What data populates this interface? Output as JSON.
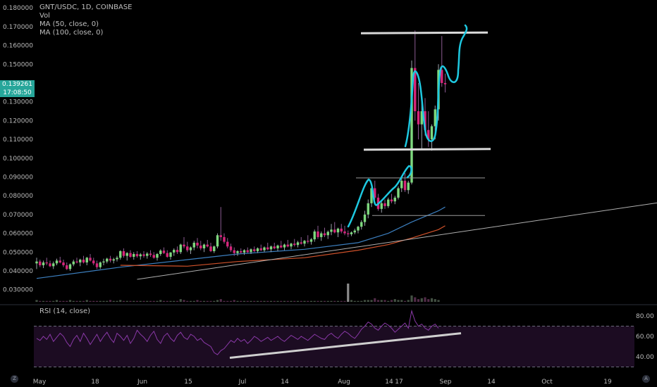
{
  "header": {
    "symbol": "GNT/USDC, 1D, COINBASE",
    "indicators": [
      "Vol",
      "MA (50, close, 0)",
      "MA (100, close, 0)"
    ]
  },
  "price_panel": {
    "last_price": "0.139261",
    "countdown": "17:08:50",
    "y_ticks": [
      "0.180000",
      "0.170000",
      "0.160000",
      "0.150000",
      "0.140000",
      "0.130000",
      "0.120000",
      "0.110000",
      "0.100000",
      "0.090000",
      "0.080000",
      "0.070000",
      "0.060000",
      "0.050000",
      "0.040000",
      "0.030000"
    ]
  },
  "rsi_panel": {
    "label": "RSI (14, close)",
    "y_ticks": [
      "80.00",
      "60.00",
      "40.00"
    ]
  },
  "time_axis": [
    "May",
    "18",
    "Jun",
    "15",
    "Jul",
    "14",
    "Aug",
    "14",
    "17",
    "Sep",
    "14",
    "Oct",
    "19"
  ],
  "corner_buttons": [
    "Z",
    "A"
  ],
  "colors": {
    "up": "#7ed87e",
    "down": "#d6257a",
    "ma50": "#3c7fbf",
    "ma100": "#d2522a",
    "rsi": "#8a39a8",
    "rsi_fill": "#1c0c22",
    "annotation": "#1ec8e0",
    "trendline": "#d9d9d9"
  },
  "chart_data": {
    "type": "candlestick",
    "x_range": [
      "Apr 29",
      "Oct 20"
    ],
    "y_range": [
      0.025,
      0.183
    ],
    "y_scale": "linear",
    "candles": [
      [
        0.044,
        0.047,
        0.041,
        0.045
      ],
      [
        0.045,
        0.046,
        0.042,
        0.043
      ],
      [
        0.043,
        0.0455,
        0.0415,
        0.0445
      ],
      [
        0.0445,
        0.047,
        0.043,
        0.044
      ],
      [
        0.044,
        0.0455,
        0.042,
        0.0425
      ],
      [
        0.0425,
        0.045,
        0.041,
        0.044
      ],
      [
        0.044,
        0.0465,
        0.043,
        0.0455
      ],
      [
        0.0455,
        0.0475,
        0.044,
        0.0445
      ],
      [
        0.0445,
        0.046,
        0.042,
        0.043
      ],
      [
        0.043,
        0.0445,
        0.0405,
        0.041
      ],
      [
        0.041,
        0.044,
        0.04,
        0.0435
      ],
      [
        0.0435,
        0.046,
        0.0425,
        0.045
      ],
      [
        0.045,
        0.047,
        0.044,
        0.0445
      ],
      [
        0.0445,
        0.0465,
        0.0425,
        0.046
      ],
      [
        0.046,
        0.048,
        0.044,
        0.0445
      ],
      [
        0.0445,
        0.0475,
        0.043,
        0.047
      ],
      [
        0.047,
        0.049,
        0.045,
        0.0455
      ],
      [
        0.0455,
        0.047,
        0.043,
        0.044
      ],
      [
        0.044,
        0.0455,
        0.041,
        0.042
      ],
      [
        0.042,
        0.045,
        0.041,
        0.0445
      ],
      [
        0.0445,
        0.0465,
        0.043,
        0.045
      ],
      [
        0.045,
        0.047,
        0.044,
        0.0465
      ],
      [
        0.0465,
        0.048,
        0.0445,
        0.0455
      ],
      [
        0.0455,
        0.047,
        0.044,
        0.0462
      ],
      [
        0.0462,
        0.048,
        0.045,
        0.047
      ],
      [
        0.047,
        0.051,
        0.046,
        0.0505
      ],
      [
        0.0505,
        0.052,
        0.047,
        0.048
      ],
      [
        0.048,
        0.05,
        0.0455,
        0.0495
      ],
      [
        0.0495,
        0.051,
        0.047,
        0.0475
      ],
      [
        0.0475,
        0.05,
        0.046,
        0.049
      ],
      [
        0.049,
        0.0505,
        0.047,
        0.0478
      ],
      [
        0.0478,
        0.0495,
        0.046,
        0.0488
      ],
      [
        0.0488,
        0.0505,
        0.047,
        0.048
      ],
      [
        0.048,
        0.05,
        0.0465,
        0.0492
      ],
      [
        0.0492,
        0.051,
        0.0475,
        0.0485
      ],
      [
        0.0485,
        0.05,
        0.0465,
        0.047
      ],
      [
        0.047,
        0.0495,
        0.0455,
        0.049
      ],
      [
        0.049,
        0.0515,
        0.048,
        0.0508
      ],
      [
        0.0508,
        0.0525,
        0.049,
        0.0495
      ],
      [
        0.0495,
        0.051,
        0.047,
        0.0475
      ],
      [
        0.0475,
        0.05,
        0.046,
        0.0498
      ],
      [
        0.0498,
        0.052,
        0.048,
        0.0512
      ],
      [
        0.0512,
        0.053,
        0.049,
        0.05
      ],
      [
        0.05,
        0.0545,
        0.049,
        0.054
      ],
      [
        0.054,
        0.058,
        0.052,
        0.053
      ],
      [
        0.053,
        0.0555,
        0.05,
        0.051
      ],
      [
        0.051,
        0.053,
        0.049,
        0.0525
      ],
      [
        0.0525,
        0.056,
        0.051,
        0.055
      ],
      [
        0.055,
        0.0575,
        0.052,
        0.0535
      ],
      [
        0.0535,
        0.056,
        0.051,
        0.052
      ],
      [
        0.052,
        0.0545,
        0.05,
        0.054
      ],
      [
        0.054,
        0.0565,
        0.0525,
        0.053
      ],
      [
        0.053,
        0.055,
        0.05,
        0.0505
      ],
      [
        0.0505,
        0.0535,
        0.0495,
        0.053
      ],
      [
        0.053,
        0.06,
        0.052,
        0.059
      ],
      [
        0.059,
        0.074,
        0.056,
        0.058
      ],
      [
        0.058,
        0.06,
        0.0545,
        0.0555
      ],
      [
        0.0555,
        0.0575,
        0.052,
        0.053
      ],
      [
        0.053,
        0.0545,
        0.05,
        0.051
      ],
      [
        0.051,
        0.0525,
        0.048,
        0.0495
      ],
      [
        0.0495,
        0.051,
        0.048,
        0.0505
      ],
      [
        0.0505,
        0.052,
        0.049,
        0.0498
      ],
      [
        0.0498,
        0.0515,
        0.0485,
        0.051
      ],
      [
        0.051,
        0.0525,
        0.0495,
        0.05
      ],
      [
        0.05,
        0.052,
        0.049,
        0.0515
      ],
      [
        0.0515,
        0.053,
        0.05,
        0.0505
      ],
      [
        0.0505,
        0.0525,
        0.0495,
        0.052
      ],
      [
        0.052,
        0.054,
        0.0505,
        0.051
      ],
      [
        0.051,
        0.053,
        0.05,
        0.0525
      ],
      [
        0.0525,
        0.055,
        0.051,
        0.0515
      ],
      [
        0.0515,
        0.0535,
        0.05,
        0.053
      ],
      [
        0.053,
        0.055,
        0.0515,
        0.052
      ],
      [
        0.052,
        0.054,
        0.0505,
        0.0535
      ],
      [
        0.0535,
        0.056,
        0.052,
        0.0525
      ],
      [
        0.0525,
        0.0545,
        0.051,
        0.054
      ],
      [
        0.054,
        0.0565,
        0.0525,
        0.053
      ],
      [
        0.053,
        0.055,
        0.0515,
        0.0545
      ],
      [
        0.0545,
        0.057,
        0.053,
        0.0538
      ],
      [
        0.0538,
        0.056,
        0.0525,
        0.0552
      ],
      [
        0.0552,
        0.058,
        0.054,
        0.0545
      ],
      [
        0.0545,
        0.0565,
        0.053,
        0.056
      ],
      [
        0.056,
        0.059,
        0.0545,
        0.0555
      ],
      [
        0.0555,
        0.0575,
        0.054,
        0.0568
      ],
      [
        0.0568,
        0.062,
        0.0555,
        0.061
      ],
      [
        0.061,
        0.064,
        0.057,
        0.058
      ],
      [
        0.058,
        0.061,
        0.056,
        0.06
      ],
      [
        0.06,
        0.063,
        0.058,
        0.059
      ],
      [
        0.059,
        0.0615,
        0.057,
        0.0608
      ],
      [
        0.0608,
        0.065,
        0.059,
        0.062
      ],
      [
        0.062,
        0.066,
        0.06,
        0.0605
      ],
      [
        0.0605,
        0.063,
        0.058,
        0.0625
      ],
      [
        0.0625,
        0.065,
        0.06,
        0.061
      ],
      [
        0.061,
        0.064,
        0.059,
        0.06
      ],
      [
        0.06,
        0.0615,
        0.058,
        0.0595
      ],
      [
        0.0595,
        0.061,
        0.0585,
        0.0605
      ],
      [
        0.0605,
        0.0625,
        0.0595,
        0.0615
      ],
      [
        0.0615,
        0.064,
        0.06,
        0.0635
      ],
      [
        0.0635,
        0.067,
        0.062,
        0.066
      ],
      [
        0.066,
        0.072,
        0.064,
        0.07
      ],
      [
        0.07,
        0.078,
        0.068,
        0.076
      ],
      [
        0.076,
        0.086,
        0.074,
        0.084
      ],
      [
        0.084,
        0.088,
        0.078,
        0.079
      ],
      [
        0.079,
        0.081,
        0.072,
        0.073
      ],
      [
        0.073,
        0.077,
        0.071,
        0.076
      ],
      [
        0.076,
        0.078,
        0.073,
        0.0745
      ],
      [
        0.0745,
        0.079,
        0.0735,
        0.078
      ],
      [
        0.078,
        0.081,
        0.076,
        0.077
      ],
      [
        0.077,
        0.08,
        0.0755,
        0.079
      ],
      [
        0.079,
        0.085,
        0.078,
        0.084
      ],
      [
        0.084,
        0.09,
        0.082,
        0.088
      ],
      [
        0.088,
        0.092,
        0.082,
        0.083
      ],
      [
        0.083,
        0.088,
        0.081,
        0.087
      ],
      [
        0.087,
        0.152,
        0.086,
        0.148
      ],
      [
        0.148,
        0.168,
        0.12,
        0.125
      ],
      [
        0.125,
        0.14,
        0.11,
        0.118
      ],
      [
        0.118,
        0.13,
        0.105,
        0.125
      ],
      [
        0.125,
        0.132,
        0.112,
        0.115
      ],
      [
        0.115,
        0.125,
        0.106,
        0.11
      ],
      [
        0.11,
        0.118,
        0.104,
        0.117
      ],
      [
        0.117,
        0.128,
        0.11,
        0.126
      ],
      [
        0.126,
        0.15,
        0.12,
        0.147
      ],
      [
        0.147,
        0.165,
        0.138,
        0.14
      ],
      [
        0.14,
        0.145,
        0.135,
        0.1393
      ]
    ],
    "ma50": [
      [
        0,
        0.036
      ],
      [
        25,
        0.042
      ],
      [
        45,
        0.046
      ],
      [
        60,
        0.049
      ],
      [
        80,
        0.0515
      ],
      [
        96,
        0.055
      ],
      [
        105,
        0.06
      ],
      [
        112,
        0.066
      ],
      [
        120,
        0.072
      ],
      [
        122,
        0.074
      ]
    ],
    "ma100": [
      [
        25,
        0.043
      ],
      [
        45,
        0.0425
      ],
      [
        60,
        0.045
      ],
      [
        80,
        0.047
      ],
      [
        96,
        0.051
      ],
      [
        105,
        0.054
      ],
      [
        112,
        0.0575
      ],
      [
        120,
        0.062
      ],
      [
        122,
        0.064
      ]
    ],
    "volume": [
      2,
      1,
      1,
      1,
      1,
      1,
      2,
      1,
      1,
      1,
      2,
      1,
      1,
      1,
      1,
      2,
      1,
      1,
      1,
      1,
      1,
      1,
      2,
      1,
      1,
      2,
      1,
      1,
      1,
      1,
      1,
      1,
      1,
      1,
      1,
      1,
      1,
      2,
      1,
      1,
      1,
      1,
      1,
      3,
      2,
      1,
      1,
      1,
      2,
      1,
      1,
      1,
      1,
      1,
      2,
      3,
      1,
      1,
      1,
      2,
      1,
      1,
      1,
      1,
      1,
      1,
      1,
      1,
      1,
      1,
      1,
      1,
      1,
      1,
      1,
      1,
      1,
      1,
      1,
      1,
      1,
      1,
      1,
      1,
      1,
      1,
      1,
      1,
      1,
      1,
      1,
      1,
      1,
      20,
      2,
      1,
      1,
      1,
      2,
      2,
      2,
      4,
      2,
      2,
      2,
      1,
      2,
      3,
      2,
      2,
      1,
      2,
      7,
      5,
      3,
      4,
      5,
      3,
      4,
      3,
      2
    ],
    "rsi": [
      58,
      56,
      60,
      57,
      62,
      55,
      59,
      63,
      60,
      54,
      50,
      57,
      61,
      55,
      63,
      58,
      52,
      57,
      62,
      55,
      60,
      64,
      58,
      54,
      63,
      60,
      56,
      61,
      53,
      58,
      66,
      62,
      59,
      55,
      61,
      65,
      57,
      53,
      60,
      63,
      58,
      55,
      61,
      64,
      59,
      57,
      62,
      60,
      56,
      58,
      54,
      52,
      50,
      44,
      42,
      46,
      48,
      52,
      56,
      54,
      58,
      55,
      57,
      53,
      56,
      60,
      58,
      55,
      57,
      59,
      56,
      58,
      60,
      57,
      55,
      58,
      61,
      59,
      57,
      60,
      58,
      56,
      59,
      62,
      60,
      58,
      57,
      61,
      63,
      60,
      58,
      62,
      65,
      63,
      60,
      58,
      62,
      67,
      70,
      74,
      72,
      68,
      66,
      70,
      73,
      71,
      68,
      64,
      67,
      70,
      73,
      68,
      85,
      75,
      70,
      72,
      68,
      66,
      70,
      72,
      68
    ],
    "rsi_bands": [
      70,
      30
    ],
    "annotations": {
      "horizontal_lines": [
        0.1665,
        0.1045,
        0.0895,
        0.0695
      ],
      "rising_trendline": [
        [
          30,
          0.0355
        ],
        [
          140,
          0.0762
        ]
      ],
      "rsi_trendline": [
        [
          60,
          39
        ],
        [
          130,
          63
        ]
      ]
    }
  }
}
